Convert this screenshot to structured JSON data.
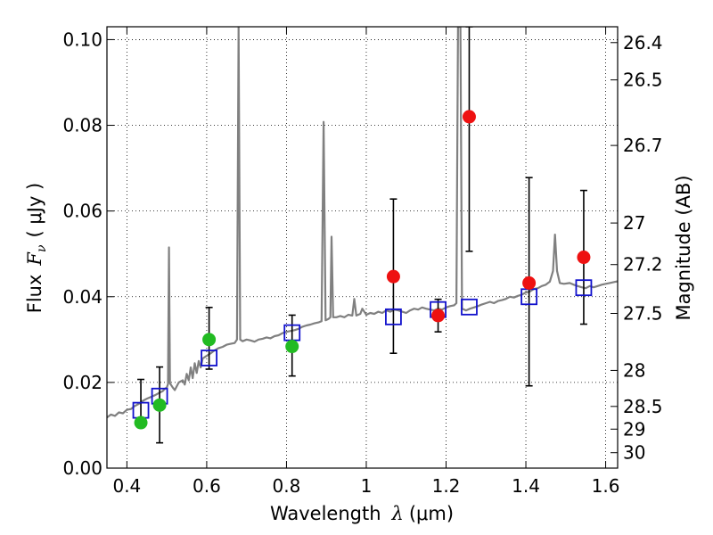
{
  "chart_data": {
    "type": "scatter",
    "xlabel_prefix": "Wavelength",
    "xlabel_symbol": "λ",
    "xlabel_unit": "(μm)",
    "ylabel_prefix": "Flux",
    "ylabel_symbol": "F",
    "ylabel_sub": "ν",
    "ylabel_unit": "( μJy )",
    "y2label": "Magnitude (AB)",
    "xlim": [
      0.35,
      1.63
    ],
    "ylim": [
      0.0,
      0.103
    ],
    "grid": true,
    "x_ticks": [
      0.4,
      0.6,
      0.8,
      1.0,
      1.2,
      1.4,
      1.6
    ],
    "x_tick_labels": [
      "0.4",
      "0.6",
      "0.8",
      "1",
      "1.2",
      "1.4",
      "1.6"
    ],
    "y_ticks": [
      0.0,
      0.02,
      0.04,
      0.06,
      0.08,
      0.1
    ],
    "y_tick_labels": [
      "0.00",
      "0.02",
      "0.04",
      "0.06",
      "0.08",
      "0.10"
    ],
    "mag_ticks": [
      {
        "label": "26.4",
        "flux": 0.0993
      },
      {
        "label": "26.5",
        "flux": 0.0906
      },
      {
        "label": "26.7",
        "flux": 0.0753
      },
      {
        "label": "27",
        "flux": 0.0572
      },
      {
        "label": "27.2",
        "flux": 0.0475
      },
      {
        "label": "27.5",
        "flux": 0.0361
      },
      {
        "label": "28",
        "flux": 0.0228
      },
      {
        "label": "28.5",
        "flux": 0.0144
      },
      {
        "label": "29",
        "flux": 0.0091
      },
      {
        "label": "30",
        "flux": 0.0036
      }
    ],
    "series": [
      {
        "marker": "circle",
        "color": "#22bb22",
        "points": [
          {
            "x": 0.435,
            "y": 0.0106,
            "yerr_low": 0.0104,
            "yerr_high": 0.0207
          },
          {
            "x": 0.482,
            "y": 0.0147,
            "yerr_low": 0.0059,
            "yerr_high": 0.0236
          },
          {
            "x": 0.606,
            "y": 0.03,
            "yerr_low": 0.0231,
            "yerr_high": 0.0375
          },
          {
            "x": 0.814,
            "y": 0.0284,
            "yerr_low": 0.0215,
            "yerr_high": 0.0357
          }
        ]
      },
      {
        "marker": "circle",
        "color": "#ee1111",
        "points": [
          {
            "x": 1.068,
            "y": 0.0447,
            "yerr_low": 0.0268,
            "yerr_high": 0.0628
          },
          {
            "x": 1.18,
            "y": 0.0356,
            "yerr_low": 0.0318,
            "yerr_high": 0.0394
          },
          {
            "x": 1.258,
            "y": 0.082,
            "yerr_low": 0.0506,
            "yerr_high": 0.103
          },
          {
            "x": 1.408,
            "y": 0.0432,
            "yerr_low": 0.0192,
            "yerr_high": 0.0678
          },
          {
            "x": 1.545,
            "y": 0.0492,
            "yerr_low": 0.0336,
            "yerr_high": 0.0648
          }
        ]
      },
      {
        "marker": "square",
        "color": "#1111cc",
        "points": [
          {
            "x": 0.435,
            "y": 0.0135
          },
          {
            "x": 0.482,
            "y": 0.0168
          },
          {
            "x": 0.606,
            "y": 0.0257
          },
          {
            "x": 0.814,
            "y": 0.0316
          },
          {
            "x": 1.068,
            "y": 0.0353
          },
          {
            "x": 1.18,
            "y": 0.037
          },
          {
            "x": 1.258,
            "y": 0.0376
          },
          {
            "x": 1.408,
            "y": 0.04
          },
          {
            "x": 1.545,
            "y": 0.0421
          }
        ]
      }
    ],
    "spectrum": {
      "color": "#808080",
      "points": [
        [
          0.35,
          0.0118
        ],
        [
          0.36,
          0.0125
        ],
        [
          0.37,
          0.0122
        ],
        [
          0.38,
          0.013
        ],
        [
          0.39,
          0.0128
        ],
        [
          0.4,
          0.0136
        ],
        [
          0.41,
          0.0138
        ],
        [
          0.42,
          0.0145
        ],
        [
          0.43,
          0.015
        ],
        [
          0.44,
          0.0157
        ],
        [
          0.45,
          0.0162
        ],
        [
          0.46,
          0.0166
        ],
        [
          0.47,
          0.017
        ],
        [
          0.48,
          0.0175
        ],
        [
          0.49,
          0.018
        ],
        [
          0.495,
          0.0185
        ],
        [
          0.5,
          0.0188
        ],
        [
          0.503,
          0.0196
        ],
        [
          0.5055,
          0.0515
        ],
        [
          0.508,
          0.0198
        ],
        [
          0.515,
          0.0188
        ],
        [
          0.52,
          0.0182
        ],
        [
          0.53,
          0.02
        ],
        [
          0.54,
          0.0205
        ],
        [
          0.545,
          0.0195
        ],
        [
          0.55,
          0.022
        ],
        [
          0.555,
          0.0205
        ],
        [
          0.56,
          0.0235
        ],
        [
          0.565,
          0.021
        ],
        [
          0.57,
          0.0245
        ],
        [
          0.575,
          0.0222
        ],
        [
          0.58,
          0.025
        ],
        [
          0.585,
          0.0235
        ],
        [
          0.59,
          0.0256
        ],
        [
          0.6,
          0.0262
        ],
        [
          0.61,
          0.0268
        ],
        [
          0.62,
          0.0275
        ],
        [
          0.63,
          0.028
        ],
        [
          0.64,
          0.0283
        ],
        [
          0.65,
          0.0288
        ],
        [
          0.66,
          0.029
        ],
        [
          0.67,
          0.0292
        ],
        [
          0.676,
          0.03
        ],
        [
          0.68,
          0.103
        ],
        [
          0.684,
          0.03
        ],
        [
          0.69,
          0.0296
        ],
        [
          0.7,
          0.03
        ],
        [
          0.71,
          0.0298
        ],
        [
          0.72,
          0.0295
        ],
        [
          0.73,
          0.03
        ],
        [
          0.74,
          0.0302
        ],
        [
          0.75,
          0.0305
        ],
        [
          0.76,
          0.0303
        ],
        [
          0.77,
          0.0308
        ],
        [
          0.78,
          0.031
        ],
        [
          0.79,
          0.0315
        ],
        [
          0.8,
          0.0318
        ],
        [
          0.81,
          0.032
        ],
        [
          0.82,
          0.0322
        ],
        [
          0.83,
          0.0325
        ],
        [
          0.84,
          0.033
        ],
        [
          0.85,
          0.0333
        ],
        [
          0.86,
          0.0335
        ],
        [
          0.87,
          0.0338
        ],
        [
          0.88,
          0.034
        ],
        [
          0.888,
          0.0343
        ],
        [
          0.893,
          0.0808
        ],
        [
          0.898,
          0.0345
        ],
        [
          0.905,
          0.0348
        ],
        [
          0.91,
          0.0352
        ],
        [
          0.913,
          0.054
        ],
        [
          0.917,
          0.0352
        ],
        [
          0.925,
          0.0352
        ],
        [
          0.935,
          0.0355
        ],
        [
          0.945,
          0.0352
        ],
        [
          0.955,
          0.0358
        ],
        [
          0.965,
          0.0356
        ],
        [
          0.97,
          0.0395
        ],
        [
          0.975,
          0.0356
        ],
        [
          0.985,
          0.036
        ],
        [
          0.99,
          0.0372
        ],
        [
          1.0,
          0.0358
        ],
        [
          1.01,
          0.0362
        ],
        [
          1.02,
          0.036
        ],
        [
          1.03,
          0.0365
        ],
        [
          1.04,
          0.0362
        ],
        [
          1.05,
          0.0368
        ],
        [
          1.06,
          0.0365
        ],
        [
          1.07,
          0.037
        ],
        [
          1.08,
          0.0368
        ],
        [
          1.09,
          0.0365
        ],
        [
          1.1,
          0.0362
        ],
        [
          1.11,
          0.0368
        ],
        [
          1.12,
          0.0372
        ],
        [
          1.13,
          0.037
        ],
        [
          1.14,
          0.0375
        ],
        [
          1.15,
          0.0372
        ],
        [
          1.16,
          0.037
        ],
        [
          1.17,
          0.0368
        ],
        [
          1.18,
          0.0372
        ],
        [
          1.19,
          0.037
        ],
        [
          1.2,
          0.0375
        ],
        [
          1.21,
          0.0378
        ],
        [
          1.22,
          0.038
        ],
        [
          1.226,
          0.0385
        ],
        [
          1.23,
          0.103
        ],
        [
          1.236,
          0.103
        ],
        [
          1.24,
          0.0372
        ],
        [
          1.25,
          0.0368
        ],
        [
          1.26,
          0.0372
        ],
        [
          1.27,
          0.0375
        ],
        [
          1.28,
          0.0378
        ],
        [
          1.29,
          0.0382
        ],
        [
          1.3,
          0.0385
        ],
        [
          1.31,
          0.0388
        ],
        [
          1.32,
          0.0385
        ],
        [
          1.33,
          0.039
        ],
        [
          1.34,
          0.0392
        ],
        [
          1.35,
          0.0395
        ],
        [
          1.36,
          0.04
        ],
        [
          1.37,
          0.0398
        ],
        [
          1.38,
          0.0402
        ],
        [
          1.39,
          0.0405
        ],
        [
          1.4,
          0.041
        ],
        [
          1.41,
          0.0412
        ],
        [
          1.42,
          0.0418
        ],
        [
          1.43,
          0.042
        ],
        [
          1.44,
          0.0425
        ],
        [
          1.45,
          0.0428
        ],
        [
          1.46,
          0.0435
        ],
        [
          1.468,
          0.046
        ],
        [
          1.473,
          0.0545
        ],
        [
          1.478,
          0.046
        ],
        [
          1.485,
          0.0432
        ],
        [
          1.495,
          0.043
        ],
        [
          1.51,
          0.0432
        ],
        [
          1.52,
          0.0428
        ],
        [
          1.53,
          0.0425
        ],
        [
          1.54,
          0.0422
        ],
        [
          1.55,
          0.042
        ],
        [
          1.56,
          0.0425
        ],
        [
          1.57,
          0.0422
        ],
        [
          1.58,
          0.0425
        ],
        [
          1.59,
          0.0428
        ],
        [
          1.6,
          0.043
        ],
        [
          1.61,
          0.0432
        ],
        [
          1.62,
          0.0434
        ],
        [
          1.63,
          0.0436
        ]
      ]
    }
  }
}
